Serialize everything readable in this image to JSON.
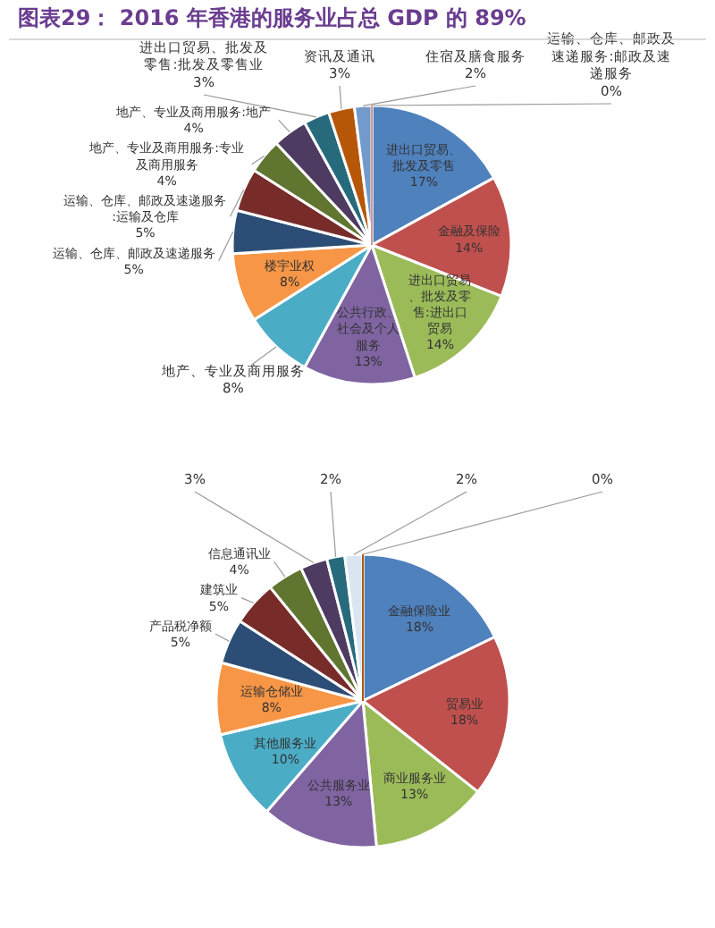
{
  "chart_data": [
    {
      "type": "pie",
      "title": "图表29： 2016 年香港的服务业占总 GDP 的 89%",
      "categories": [
        "进出口贸易、批发及零售",
        "金融及保险",
        "进出口贸易、批发及零售:进出口贸易",
        "公共行政、社会及个人服务",
        "地产、专业及商用服务",
        "楼宇业权",
        "运输、仓库、邮政及速递服务",
        "运输、仓库、邮政及速递服务:运输及仓库",
        "地产、专业及商用服务:专业及商用服务",
        "地产、专业及商用服务:地产",
        "进出口贸易、批发及零售:批发及零售业",
        "资讯及通讯",
        "住宿及膳食服务",
        "运输、仓库、邮政及速递服务:邮政及速递服务"
      ],
      "values": [
        17,
        14,
        14,
        13,
        8,
        8,
        5,
        5,
        4,
        4,
        3,
        3,
        2,
        0
      ],
      "value_labels": [
        "17%",
        "14%",
        "14%",
        "13%",
        "8%",
        "8%",
        "5%",
        "5%",
        "4%",
        "4%",
        "3%",
        "3%",
        "2%",
        "0%"
      ],
      "colors": [
        "#4f81bd",
        "#c0504d",
        "#9bbb59",
        "#8064a2",
        "#4bacc6",
        "#f79646",
        "#2c4d75",
        "#772c2a",
        "#5f7530",
        "#4d3b62",
        "#276a7c",
        "#b65708",
        "#729aca",
        "#d99694"
      ]
    },
    {
      "type": "pie",
      "categories": [
        "金融保险业",
        "贸易业",
        "商业服务业",
        "公共服务业",
        "其他服务业",
        "运输仓储业",
        "产品税净额",
        "建筑业",
        "信息通讯业",
        null,
        null,
        null,
        null
      ],
      "values": [
        18,
        18,
        13,
        13,
        10,
        8,
        5,
        5,
        4,
        3,
        2,
        2,
        0
      ],
      "value_labels": [
        "18%",
        "18%",
        "13%",
        "13%",
        "10%",
        "8%",
        "5%",
        "5%",
        "4%",
        "3%",
        "2%",
        "2%",
        "0%"
      ],
      "colors": [
        "#4f81bd",
        "#c0504d",
        "#9bbb59",
        "#8064a2",
        "#4bacc6",
        "#f79646",
        "#2c4d75",
        "#772c2a",
        "#5f7530",
        "#4d3b62",
        "#276a7c",
        "#d9e6f2",
        "#b65708"
      ]
    }
  ]
}
